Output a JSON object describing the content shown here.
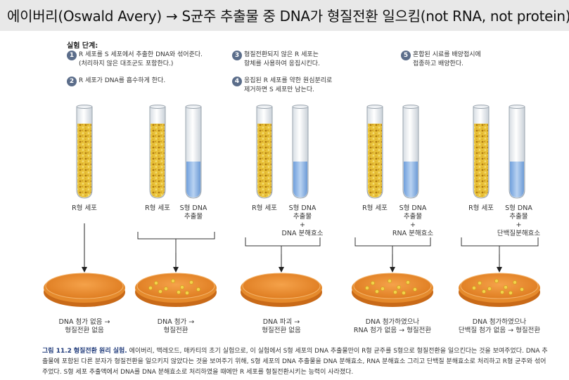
{
  "title": "에이버리(Oswald Avery) → S균주 추출물 중 DNA가 형질전환 일으킴(not RNA, not protein)",
  "steps_heading": "실험 단계:",
  "steps": [
    {
      "num": "1",
      "lines": [
        "R 세포를 S 세포에서 추출한 DNA와 섞어준다.",
        "(처리하지 않은 대조군도 포함한다.)"
      ]
    },
    {
      "num": "2",
      "lines": [
        "R 세포가 DNA를 흡수하게 한다."
      ]
    },
    {
      "num": "3",
      "lines": [
        "형질전환되지 않은 R 세포는",
        "항체를 사용하여 응집시킨다."
      ]
    },
    {
      "num": "4",
      "lines": [
        "응집된 R 세포를 약한 원심분리로",
        "제거하면 S 세포만 남는다."
      ]
    },
    {
      "num": "5",
      "lines": [
        "혼합된 시료를 배양접시에",
        "접종하고 배양한다."
      ]
    }
  ],
  "tube_labels": {
    "r_cells": "R형 세포",
    "s_dna_line1": "S형 DNA",
    "s_dna_line2": "추출물",
    "plus": "+",
    "dnase": "DNA 분해효소",
    "rnase": "RNA 분해효소",
    "protease": "단백질분해효소"
  },
  "results": [
    [
      "DNA 첨가 없음 →",
      "형질전환 없음"
    ],
    [
      "DNA 첨가 →",
      "형질전환"
    ],
    [
      "DNA 파괴 →",
      "형질전환 없음"
    ],
    [
      "DNA 첨가하였으나",
      "RNA 첨가 없음 → 형질전환"
    ],
    [
      "DNA 첨가하였으나",
      "단백질 첨가 없음 → 형질전환"
    ]
  ],
  "caption": {
    "label": "그림 11.2",
    "heading": "형질전환 원리 실험.",
    "body": " 에이버리, 맥레오드, 매카티의 초기 실험으로, 이 실험에서 S형 세포의 DNA 추출물만이 R형 균주를 S형으로 형질전환을 일으킨다는 것을 보여주었다. DNA 추출물에 포함된 다른 분자가 형질전환을 일으키지 않았다는 것을 보여주기 위해, S형 세포의 DNA 추출물을 DNA 분해효소, RNA 분해효소 그리고 단백질 분해효소로 처리하고 R형 균주와 섞어 주었다. S형 세포 추출액에서 DNA를 DNA 분해효소로 처리하였을 때에만 R 세포를 형질전환시키는 능력이 사라졌다."
  },
  "colors": {
    "title_bar": "#e8e8e8",
    "bacteria_tube": "#e9c23a",
    "dna_liquid": "#8fb7e8",
    "plate": "#e88a2a",
    "step_badge": "#5b6d8a"
  }
}
